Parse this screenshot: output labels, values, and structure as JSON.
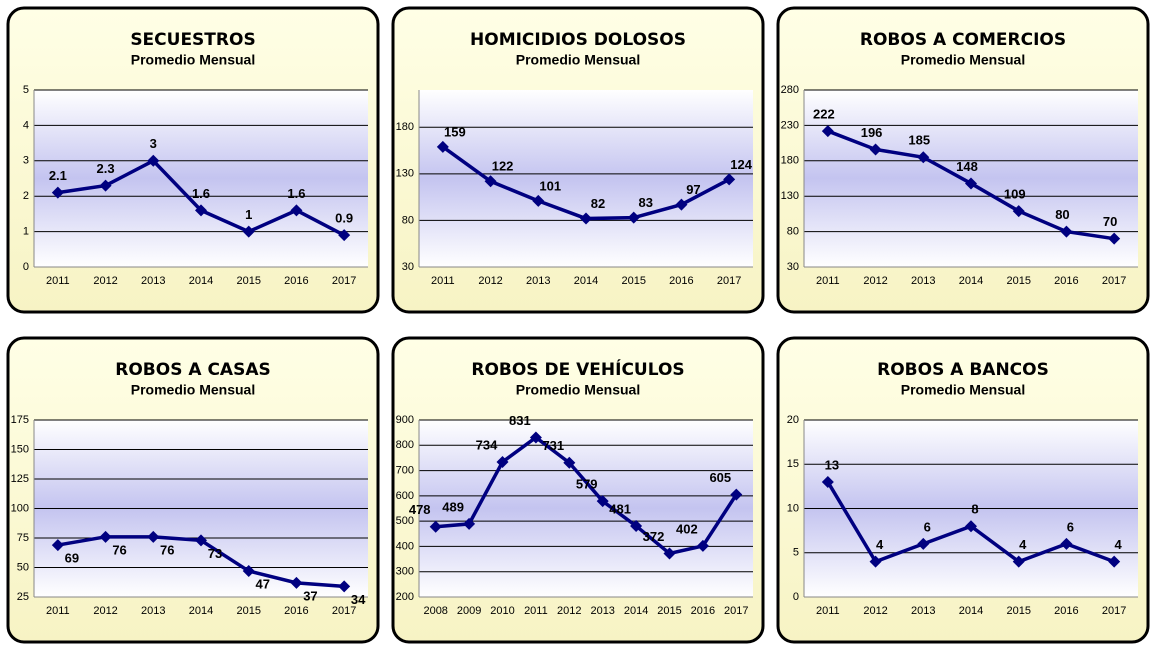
{
  "chart_data": [
    {
      "type": "line",
      "title": "SECUESTROS",
      "subtitle": "Promedio Mensual",
      "categories": [
        "2011",
        "2012",
        "2013",
        "2014",
        "2015",
        "2016",
        "2017"
      ],
      "values": [
        2.1,
        2.3,
        3,
        1.6,
        1,
        1.6,
        0.9
      ],
      "color": "#000080",
      "ylim": [
        0,
        5
      ],
      "yticks": [
        0,
        1,
        2,
        3,
        4,
        5
      ],
      "grid": true
    },
    {
      "type": "line",
      "title": "HOMICIDIOS DOLOSOS",
      "subtitle": "Promedio Mensual",
      "categories": [
        "2011",
        "2012",
        "2013",
        "2014",
        "2015",
        "2016",
        "2017"
      ],
      "values": [
        159,
        122,
        101,
        82,
        83,
        97,
        124
      ],
      "color": "#000080",
      "ylim": [
        30,
        220
      ],
      "yticks": [
        30,
        80,
        130,
        180
      ],
      "grid": true
    },
    {
      "type": "line",
      "title": "ROBOS  A COMERCIOS",
      "subtitle": "Promedio Mensual",
      "categories": [
        "2011",
        "2012",
        "2013",
        "2014",
        "2015",
        "2016",
        "2017"
      ],
      "values": [
        222,
        196,
        185,
        148,
        109,
        80,
        70
      ],
      "color": "#000080",
      "ylim": [
        30,
        280
      ],
      "yticks": [
        30,
        80,
        130,
        180,
        230,
        280
      ],
      "grid": true
    },
    {
      "type": "line",
      "title": "ROBOS A CASAS",
      "subtitle": "Promedio Mensual",
      "categories": [
        "2011",
        "2012",
        "2013",
        "2014",
        "2015",
        "2016",
        "2017"
      ],
      "values": [
        69,
        76,
        76,
        73,
        47,
        37,
        34
      ],
      "color": "#000080",
      "ylim": [
        25,
        175
      ],
      "yticks": [
        25,
        50,
        75,
        100,
        125,
        150,
        175
      ],
      "grid": true
    },
    {
      "type": "line",
      "title": "ROBOS DE VEHÍCULOS",
      "subtitle": "Promedio Mensual",
      "categories": [
        "2008",
        "2009",
        "2010",
        "2011",
        "2012",
        "2013",
        "2014",
        "2015",
        "2016",
        "2017"
      ],
      "values": [
        478,
        489,
        734,
        831,
        731,
        579,
        481,
        372,
        402,
        605
      ],
      "color": "#000080",
      "ylim": [
        200,
        900
      ],
      "yticks": [
        200,
        300,
        400,
        500,
        600,
        700,
        800,
        900
      ],
      "grid": true
    },
    {
      "type": "line",
      "title": "ROBOS A BANCOS",
      "subtitle": "Promedio Mensual",
      "categories": [
        "2011",
        "2012",
        "2013",
        "2014",
        "2015",
        "2016",
        "2017"
      ],
      "values": [
        13,
        4,
        6,
        8,
        4,
        6,
        4
      ],
      "color": "#000080",
      "ylim": [
        0,
        20
      ],
      "yticks": [
        0,
        5,
        10,
        15,
        20
      ],
      "grid": true
    }
  ]
}
